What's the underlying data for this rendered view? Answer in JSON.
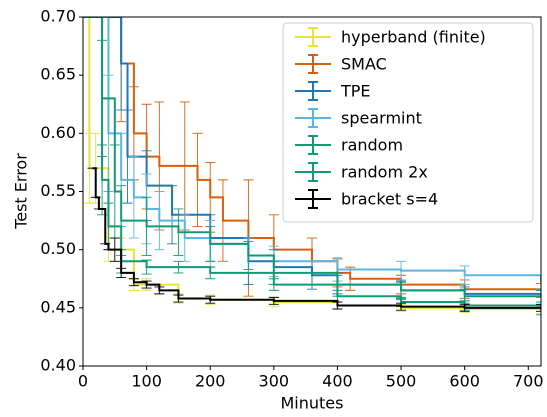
{
  "chart_data": {
    "type": "line",
    "step": "post",
    "x_label": "Minutes",
    "y_label": "Test Error",
    "xlim": [
      0,
      720
    ],
    "xticks": [
      0,
      100,
      200,
      300,
      400,
      500,
      600,
      700
    ],
    "ylim": [
      0.4,
      0.7
    ],
    "yticks": [
      {
        "value": 0.4,
        "label": "0.40"
      },
      0.45,
      {
        "value": 0.5,
        "label": "0.50"
      },
      0.55,
      {
        "value": 0.6,
        "label": "0.60"
      },
      0.65,
      {
        "value": 0.7,
        "label": "0.70"
      }
    ],
    "legend": "upper right",
    "series": [
      {
        "name": "hyperband (finite)",
        "color": "#e8e23a",
        "x": [
          0,
          10,
          20,
          40,
          60,
          80,
          100,
          150,
          200,
          300,
          400,
          500,
          600,
          720
        ],
        "values": [
          0.7,
          0.57,
          0.57,
          0.5,
          0.5,
          0.47,
          0.47,
          0.458,
          0.457,
          0.455,
          0.452,
          0.45,
          0.449,
          0.448
        ],
        "errors": [
          0.0,
          0.03,
          0.03,
          0.01,
          0.01,
          0.005,
          0.005,
          0.004,
          0.004,
          0.004,
          0.003,
          0.003,
          0.003,
          0.003
        ]
      },
      {
        "name": "SMAC",
        "color": "#d95f0e",
        "x": [
          0,
          60,
          80,
          100,
          120,
          160,
          180,
          200,
          220,
          260,
          300,
          360,
          400,
          420,
          500,
          600,
          720
        ],
        "values": [
          0.7,
          0.66,
          0.6,
          0.58,
          0.572,
          0.572,
          0.56,
          0.545,
          0.525,
          0.51,
          0.5,
          0.49,
          0.48,
          0.475,
          0.47,
          0.466,
          0.465
        ],
        "errors": [
          0.0,
          0.05,
          0.04,
          0.045,
          0.055,
          0.055,
          0.04,
          0.03,
          0.035,
          0.05,
          0.03,
          0.02,
          0.012,
          0.01,
          0.008,
          0.008,
          0.006
        ]
      },
      {
        "name": "TPE",
        "color": "#1f77b4",
        "x": [
          0,
          60,
          70,
          100,
          140,
          200,
          260,
          300,
          360,
          400,
          500,
          600,
          720
        ],
        "values": [
          0.7,
          0.66,
          0.58,
          0.555,
          0.53,
          0.51,
          0.49,
          0.485,
          0.478,
          0.47,
          0.465,
          0.462,
          0.46
        ],
        "errors": [
          0.0,
          0.04,
          0.04,
          0.03,
          0.025,
          0.02,
          0.02,
          0.015,
          0.012,
          0.01,
          0.008,
          0.006,
          0.005
        ]
      },
      {
        "name": "spearmint",
        "color": "#5ab4e5",
        "x": [
          0,
          40,
          60,
          80,
          100,
          120,
          160,
          200,
          260,
          300,
          400,
          500,
          600,
          720
        ],
        "values": [
          0.7,
          0.6,
          0.56,
          0.545,
          0.535,
          0.525,
          0.51,
          0.505,
          0.495,
          0.49,
          0.483,
          0.482,
          0.478,
          0.472
        ],
        "errors": [
          0.0,
          0.05,
          0.04,
          0.035,
          0.03,
          0.025,
          0.02,
          0.02,
          0.015,
          0.013,
          0.01,
          0.008,
          0.008,
          0.006
        ]
      },
      {
        "name": "random",
        "color": "#0f9b74",
        "x": [
          0,
          30,
          50,
          60,
          100,
          150,
          200,
          260,
          300,
          400,
          500,
          600,
          720
        ],
        "values": [
          0.7,
          0.63,
          0.55,
          0.525,
          0.52,
          0.515,
          0.505,
          0.495,
          0.48,
          0.47,
          0.465,
          0.46,
          0.46
        ],
        "errors": [
          0.0,
          0.05,
          0.04,
          0.03,
          0.025,
          0.02,
          0.015,
          0.012,
          0.01,
          0.008,
          0.007,
          0.006,
          0.005
        ]
      },
      {
        "name": "random 2x",
        "color": "#0f9b74",
        "x": [
          0,
          30,
          40,
          60,
          100,
          150,
          200,
          300,
          400,
          500,
          600,
          720
        ],
        "values": [
          0.7,
          0.56,
          0.52,
          0.49,
          0.485,
          0.485,
          0.48,
          0.47,
          0.46,
          0.455,
          0.452,
          0.448
        ],
        "errors": [
          0.0,
          0.03,
          0.02,
          0.01,
          0.006,
          0.005,
          0.005,
          0.005,
          0.005,
          0.004,
          0.004,
          0.004
        ]
      },
      {
        "name": "bracket s=4",
        "color": "#000000",
        "x": [
          15,
          20,
          25,
          35,
          40,
          50,
          60,
          80,
          100,
          120,
          150,
          200,
          300,
          400,
          500,
          600,
          720
        ],
        "values": [
          0.57,
          0.545,
          0.535,
          0.505,
          0.5,
          0.5,
          0.48,
          0.472,
          0.47,
          0.465,
          0.458,
          0.457,
          0.456,
          0.452,
          0.451,
          0.45,
          0.45
        ],
        "errors": [
          0.0,
          0.0,
          0.0,
          0.0,
          0.0,
          0.01,
          0.004,
          0.003,
          0.003,
          0.003,
          0.003,
          0.003,
          0.003,
          0.003,
          0.003,
          0.003,
          0.003
        ]
      }
    ]
  }
}
